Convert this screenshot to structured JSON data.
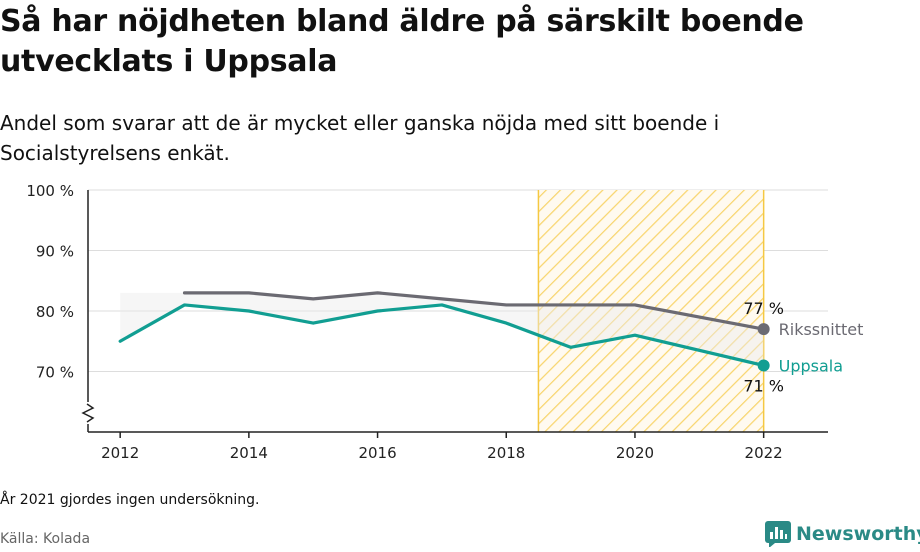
{
  "title": "Så har nöjdheten bland äldre på särskilt boende utvecklats i Uppsala",
  "subtitle": "Andel som svarar att de är mycket eller ganska nöjda med sitt boende i Socialstyrelsens enkät.",
  "footnote": "År 2021 gjordes ingen undersökning.",
  "source": "Källa: Kolada",
  "brand": "Newsworthy",
  "colors": {
    "uppsala": "#119e92",
    "riks": "#6b6a72",
    "highlight": "#f5c842",
    "grid": "#dddddd",
    "axis": "#222222"
  },
  "chart_data": {
    "type": "line",
    "x_ticks": [
      "2012",
      "2014",
      "2016",
      "2018",
      "2020",
      "2022"
    ],
    "y_ticks": [
      "70 %",
      "80 %",
      "90 %",
      "100 %"
    ],
    "ylim": [
      60,
      100
    ],
    "xlim": [
      2011.5,
      2023
    ],
    "axis_break": true,
    "highlight_range": [
      2018.5,
      2022
    ],
    "series": [
      {
        "name": "Rikssnittet",
        "color": "#6b6a72",
        "end_label": "77 %",
        "points": [
          [
            2013,
            83
          ],
          [
            2014,
            83
          ],
          [
            2015,
            82
          ],
          [
            2016,
            83
          ],
          [
            2017,
            82
          ],
          [
            2018,
            81
          ],
          [
            2019,
            81
          ],
          [
            2020,
            81
          ],
          [
            2022,
            77
          ]
        ]
      },
      {
        "name": "Uppsala",
        "color": "#119e92",
        "end_label": "71 %",
        "points": [
          [
            2012,
            75
          ],
          [
            2013,
            81
          ],
          [
            2014,
            80
          ],
          [
            2015,
            78
          ],
          [
            2016,
            80
          ],
          [
            2017,
            81
          ],
          [
            2018,
            78
          ],
          [
            2019,
            74
          ],
          [
            2020,
            76
          ],
          [
            2022,
            71
          ]
        ]
      }
    ]
  }
}
